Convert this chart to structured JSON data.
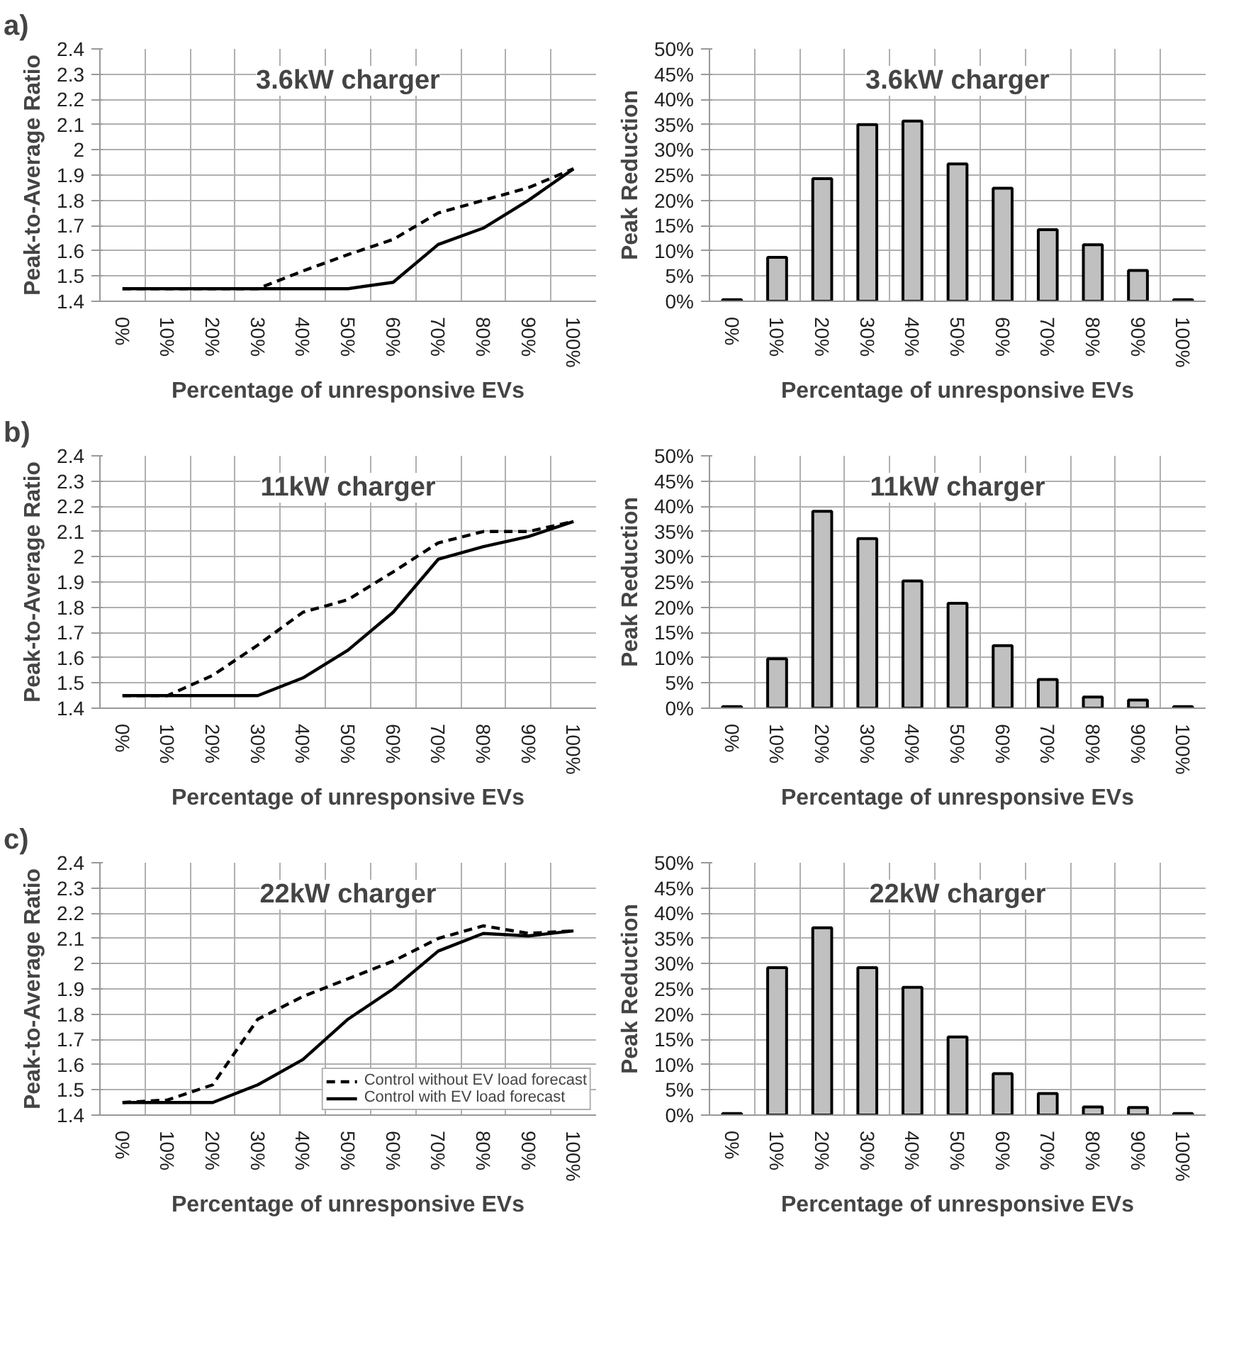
{
  "chart_data": [
    {
      "type": "line",
      "title": "3.6kW charger",
      "ylabel": "Peak-to-Average Ratio",
      "xlabel": "Percentage of unresponsive EVs",
      "annotations": [
        "a)"
      ],
      "categories": [
        "0%",
        "10%",
        "20%",
        "30%",
        "40%",
        "50%",
        "60%",
        "70%",
        "80%",
        "90%",
        "100%"
      ],
      "series": [
        {
          "color": "#000000",
          "line_style": "dashed",
          "values": [
            1.45,
            1.45,
            1.45,
            1.45,
            1.52,
            1.585,
            1.645,
            1.75,
            1.8,
            1.85,
            1.925
          ]
        },
        {
          "color": "#000000",
          "line_style": "solid",
          "values": [
            1.45,
            1.45,
            1.45,
            1.45,
            1.45,
            1.45,
            1.475,
            1.625,
            1.69,
            1.8,
            1.925
          ]
        }
      ],
      "ylim": [
        1.4,
        2.4
      ],
      "yticks": [
        1.4,
        1.5,
        1.6,
        1.7,
        1.8,
        1.9,
        2,
        2.1,
        2.2,
        2.3,
        2.4
      ],
      "grid": true
    },
    {
      "type": "bar",
      "title": "3.6kW charger",
      "ylabel": "Peak Reduction",
      "xlabel": "Percentage of unresponsive EVs",
      "categories": [
        "0%",
        "10%",
        "20%",
        "30%",
        "40%",
        "50%",
        "60%",
        "70%",
        "80%",
        "90%",
        "100%"
      ],
      "values": [
        0.3,
        8.7,
        24.3,
        35,
        35.7,
        27.2,
        22.4,
        14.2,
        11.2,
        6.1,
        0.3
      ],
      "color": "#c0c0c0",
      "ylim": [
        0,
        50
      ],
      "yticks": [
        {
          "value": 0,
          "label": "0%"
        },
        {
          "value": 5,
          "label": "5%"
        },
        {
          "value": 10,
          "label": "10%"
        },
        {
          "value": 15,
          "label": "15%"
        },
        {
          "value": 20,
          "label": "20%"
        },
        {
          "value": 25,
          "label": "25%"
        },
        {
          "value": 30,
          "label": "30%"
        },
        {
          "value": 35,
          "label": "35%"
        },
        {
          "value": 40,
          "label": "40%"
        },
        {
          "value": 45,
          "label": "45%"
        },
        {
          "value": 50,
          "label": "50%"
        }
      ],
      "grid": true
    },
    {
      "type": "line",
      "title": "11kW charger",
      "ylabel": "Peak-to-Average Ratio",
      "xlabel": "Percentage of unresponsive EVs",
      "annotations": [
        "b)"
      ],
      "categories": [
        "0%",
        "10%",
        "20%",
        "30%",
        "40%",
        "50%",
        "60%",
        "70%",
        "80%",
        "90%",
        "100%"
      ],
      "series": [
        {
          "color": "#000000",
          "line_style": "dashed",
          "values": [
            1.45,
            1.45,
            1.53,
            1.65,
            1.78,
            1.83,
            1.94,
            2.055,
            2.1,
            2.1,
            2.14
          ]
        },
        {
          "color": "#000000",
          "line_style": "solid",
          "values": [
            1.45,
            1.45,
            1.45,
            1.45,
            1.52,
            1.63,
            1.78,
            1.99,
            2.04,
            2.08,
            2.14
          ]
        }
      ],
      "ylim": [
        1.4,
        2.4
      ],
      "yticks": [
        1.4,
        1.5,
        1.6,
        1.7,
        1.8,
        1.9,
        2,
        2.1,
        2.2,
        2.3,
        2.4
      ],
      "grid": true
    },
    {
      "type": "bar",
      "title": "11kW charger",
      "ylabel": "Peak Reduction",
      "xlabel": "Percentage of unresponsive EVs",
      "categories": [
        "0%",
        "10%",
        "20%",
        "30%",
        "40%",
        "50%",
        "60%",
        "70%",
        "80%",
        "90%",
        "100%"
      ],
      "values": [
        0.3,
        9.8,
        39,
        33.6,
        25.2,
        20.8,
        12.4,
        5.7,
        2.2,
        1.6,
        0.3
      ],
      "color": "#c0c0c0",
      "ylim": [
        0,
        50
      ],
      "yticks": [
        {
          "value": 0,
          "label": "0%"
        },
        {
          "value": 5,
          "label": "5%"
        },
        {
          "value": 10,
          "label": "10%"
        },
        {
          "value": 15,
          "label": "15%"
        },
        {
          "value": 20,
          "label": "20%"
        },
        {
          "value": 25,
          "label": "25%"
        },
        {
          "value": 30,
          "label": "30%"
        },
        {
          "value": 35,
          "label": "35%"
        },
        {
          "value": 40,
          "label": "40%"
        },
        {
          "value": 45,
          "label": "45%"
        },
        {
          "value": 50,
          "label": "50%"
        }
      ],
      "grid": true
    },
    {
      "type": "line",
      "title": "22kW charger",
      "ylabel": "Peak-to-Average Ratio",
      "xlabel": "Percentage of unresponsive EVs",
      "annotations": [
        "c)"
      ],
      "categories": [
        "0%",
        "10%",
        "20%",
        "30%",
        "40%",
        "50%",
        "60%",
        "70%",
        "80%",
        "90%",
        "100%"
      ],
      "series": [
        {
          "name": "Control without EV load forecast",
          "color": "#000000",
          "line_style": "dashed",
          "values": [
            1.45,
            1.46,
            1.52,
            1.78,
            1.87,
            1.94,
            2.01,
            2.1,
            2.15,
            2.12,
            2.13
          ]
        },
        {
          "name": "Control with EV load forecast",
          "color": "#000000",
          "line_style": "solid",
          "values": [
            1.45,
            1.45,
            1.45,
            1.52,
            1.62,
            1.78,
            1.9,
            2.05,
            2.12,
            2.11,
            2.13
          ]
        }
      ],
      "ylim": [
        1.4,
        2.4
      ],
      "yticks": [
        1.4,
        1.5,
        1.6,
        1.7,
        1.8,
        1.9,
        2,
        2.1,
        2.2,
        2.3,
        2.4
      ],
      "grid": true,
      "legend": "bottom"
    },
    {
      "type": "bar",
      "title": "22kW charger",
      "ylabel": "Peak Reduction",
      "xlabel": "Percentage of unresponsive EVs",
      "categories": [
        "0%",
        "10%",
        "20%",
        "30%",
        "40%",
        "50%",
        "60%",
        "70%",
        "80%",
        "90%",
        "100%"
      ],
      "values": [
        0.3,
        29.2,
        37.1,
        29.2,
        25.3,
        15.5,
        8.2,
        4.3,
        1.6,
        1.5,
        0.3
      ],
      "color": "#c0c0c0",
      "ylim": [
        0,
        50
      ],
      "yticks": [
        {
          "value": 0,
          "label": "0%"
        },
        {
          "value": 5,
          "label": "5%"
        },
        {
          "value": 10,
          "label": "10%"
        },
        {
          "value": 15,
          "label": "15%"
        },
        {
          "value": 20,
          "label": "20%"
        },
        {
          "value": 25,
          "label": "25%"
        },
        {
          "value": 30,
          "label": "30%"
        },
        {
          "value": 35,
          "label": "35%"
        },
        {
          "value": 40,
          "label": "40%"
        },
        {
          "value": 45,
          "label": "45%"
        },
        {
          "value": 50,
          "label": "50%"
        }
      ],
      "grid": true
    }
  ]
}
